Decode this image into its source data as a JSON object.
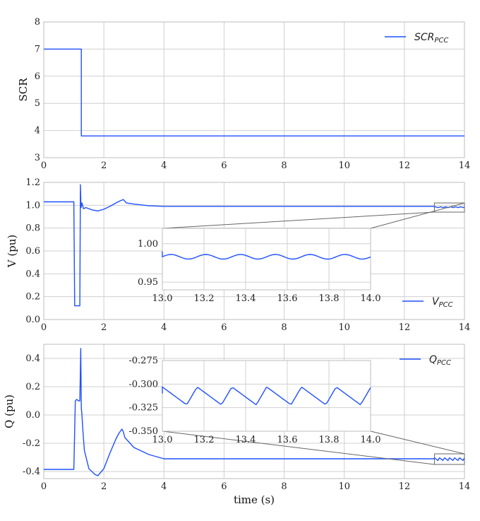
{
  "colors": {
    "series": "#1f50ff",
    "grid": "#d0d0d0",
    "frame": "#bdbdbd"
  },
  "chart_data": [
    {
      "type": "line",
      "ylabel": "SCR",
      "xlim": [
        0,
        14
      ],
      "ylim": [
        3,
        8
      ],
      "xticks": [
        "0",
        "2",
        "4",
        "6",
        "8",
        "10",
        "12",
        "14"
      ],
      "yticks": [
        "3",
        "4",
        "5",
        "6",
        "7",
        "8"
      ],
      "grid": true,
      "legend": {
        "label": "SCR",
        "subscript": "PCC",
        "position": "top-right"
      },
      "series": [
        {
          "name": "SCR_PCC",
          "x": [
            0,
            1.25,
            1.25,
            14
          ],
          "y": [
            7.0,
            7.0,
            3.8,
            3.8
          ]
        }
      ]
    },
    {
      "type": "line",
      "ylabel": "V (pu)",
      "xlim": [
        0,
        14
      ],
      "ylim": [
        0.0,
        1.2
      ],
      "xticks": [
        "0",
        "2",
        "4",
        "6",
        "8",
        "10",
        "12",
        "14"
      ],
      "yticks": [
        "0.0",
        "0.2",
        "0.4",
        "0.6",
        "0.8",
        "1.0",
        "1.2"
      ],
      "grid": true,
      "legend": {
        "label": "V",
        "subscript": "PCC",
        "position": "bottom-right"
      },
      "series": [
        {
          "name": "V_PCC",
          "x": [
            0,
            1.0,
            1.03,
            1.05,
            1.2,
            1.22,
            1.24,
            1.27,
            1.32,
            1.4,
            1.6,
            1.8,
            2.0,
            2.2,
            2.4,
            2.55,
            2.65,
            2.75,
            3.0,
            3.5,
            4.0,
            13.0
          ],
          "y": [
            1.03,
            1.03,
            0.12,
            0.12,
            0.12,
            1.18,
            0.98,
            1.02,
            0.97,
            0.98,
            0.96,
            0.95,
            0.965,
            0.99,
            1.02,
            1.04,
            1.05,
            1.02,
            1.01,
            0.995,
            0.99,
            0.99
          ]
        }
      ],
      "inset": {
        "xlim": [
          13.0,
          14.0
        ],
        "ylim": [
          0.94,
          1.02
        ],
        "xticks": [
          "13.0",
          "13.2",
          "13.4",
          "13.6",
          "13.8",
          "14.0"
        ],
        "yticks": [
          "0.95",
          "1.00"
        ],
        "period": 0.167,
        "mean": 0.983,
        "amplitude": 0.003,
        "shape": "smooth"
      }
    },
    {
      "type": "line",
      "ylabel": "Q (pu)",
      "xlabel": "time (s)",
      "xlim": [
        0,
        14
      ],
      "ylim": [
        -0.45,
        0.5
      ],
      "xticks": [
        "0",
        "2",
        "4",
        "6",
        "8",
        "10",
        "12",
        "14"
      ],
      "yticks": [
        "-0.4",
        "-0.2",
        "0.0",
        "0.2",
        "0.4"
      ],
      "grid": true,
      "legend": {
        "label": "Q",
        "subscript": "PCC",
        "position": "top-right"
      },
      "series": [
        {
          "name": "Q_PCC",
          "x": [
            0,
            1.0,
            1.05,
            1.1,
            1.15,
            1.2,
            1.23,
            1.25,
            1.27,
            1.3,
            1.35,
            1.5,
            1.7,
            1.8,
            2.0,
            2.2,
            2.4,
            2.5,
            2.6,
            2.65,
            2.7,
            3.0,
            3.5,
            4.0,
            13.0
          ],
          "y": [
            -0.385,
            -0.385,
            0.1,
            0.11,
            0.1,
            0.1,
            0.47,
            0.05,
            0.0,
            -0.1,
            -0.25,
            -0.38,
            -0.42,
            -0.43,
            -0.38,
            -0.27,
            -0.17,
            -0.13,
            -0.1,
            -0.12,
            -0.16,
            -0.23,
            -0.28,
            -0.31,
            -0.31
          ]
        }
      ],
      "inset": {
        "xlim": [
          13.0,
          14.0
        ],
        "ylim": [
          -0.35,
          -0.275
        ],
        "xticks": [
          "13.0",
          "13.2",
          "13.4",
          "13.6",
          "13.8",
          "14.0"
        ],
        "yticks": [
          "-0.275",
          "-0.300",
          "-0.325",
          "-0.350"
        ],
        "period": 0.167,
        "min": -0.322,
        "max": -0.303,
        "shape": "sawtooth"
      }
    }
  ],
  "legend_labels": [
    "SCR",
    "V",
    "Q"
  ]
}
